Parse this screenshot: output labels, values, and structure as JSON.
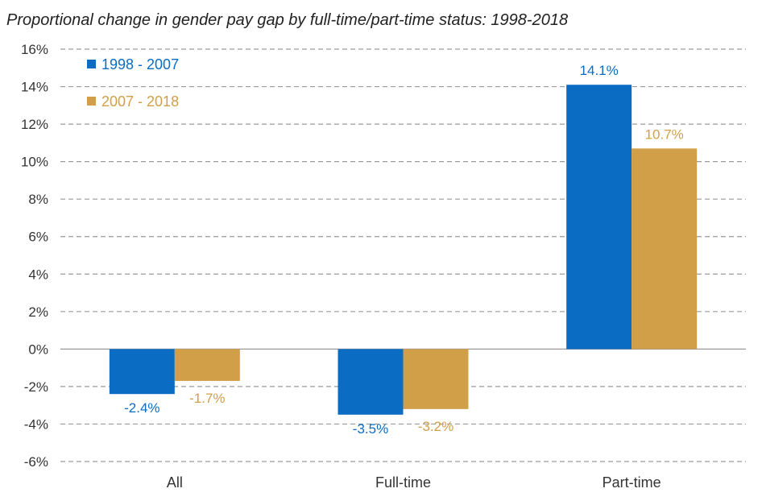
{
  "chart_data": {
    "type": "bar",
    "title": "Proportional change in gender pay gap by full-time/part-time status: 1998-2018",
    "xlabel": "",
    "ylabel": "",
    "categories": [
      "All",
      "Full-time",
      "Part-time"
    ],
    "series": [
      {
        "name": "1998 - 2007",
        "color": "#0B6CC3",
        "values": [
          -2.4,
          -3.5,
          14.1
        ],
        "labels": [
          "-2.4%",
          "-3.5%",
          "14.1%"
        ]
      },
      {
        "name": "2007 - 2018",
        "color": "#D19F48",
        "values": [
          -1.7,
          -3.2,
          10.7
        ],
        "labels": [
          "-1.7%",
          "-3.2%",
          "10.7%"
        ]
      }
    ],
    "ylim": [
      -6,
      16
    ],
    "yticks": [
      -6,
      -4,
      -2,
      0,
      2,
      4,
      6,
      8,
      10,
      12,
      14,
      16
    ],
    "ytick_labels": [
      "-6%",
      "-4%",
      "-2%",
      "0%",
      "2%",
      "4%",
      "6%",
      "8%",
      "10%",
      "12%",
      "14%",
      "16%"
    ],
    "grid": true,
    "legend_position": "top-left"
  }
}
